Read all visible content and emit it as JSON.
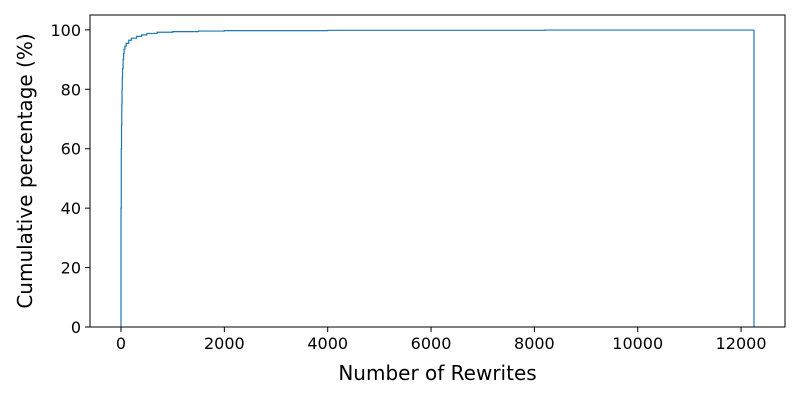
{
  "chart_data": {
    "type": "line",
    "subtype": "step-cdf",
    "title": "",
    "xlabel": "Number of Rewrites",
    "ylabel": "Cumulative percentage (%)",
    "xlim": [
      -600,
      12850
    ],
    "ylim": [
      0,
      105
    ],
    "xticks": [
      0,
      2000,
      4000,
      6000,
      8000,
      10000,
      12000
    ],
    "xtick_labels": [
      "0",
      "2000",
      "4000",
      "6000",
      "8000",
      "10000",
      "12000"
    ],
    "yticks": [
      0,
      20,
      40,
      60,
      80,
      100
    ],
    "ytick_labels": [
      "0",
      "20",
      "40",
      "60",
      "80",
      "100"
    ],
    "grid": false,
    "legend": "none",
    "series": [
      {
        "color": "#1f77b4",
        "step": "post",
        "x": [
          0,
          0,
          5,
          10,
          15,
          20,
          25,
          30,
          40,
          50,
          60,
          75,
          100,
          150,
          200,
          300,
          400,
          500,
          700,
          1000,
          1500,
          2000,
          4000,
          8200,
          12250,
          12250
        ],
        "y": [
          0,
          40,
          60,
          68,
          75,
          80,
          84,
          87,
          90,
          92,
          93.5,
          94.5,
          95.5,
          96.5,
          97.2,
          97.8,
          98.3,
          98.8,
          99.2,
          99.4,
          99.6,
          99.75,
          99.85,
          99.93,
          100,
          0
        ]
      }
    ]
  }
}
